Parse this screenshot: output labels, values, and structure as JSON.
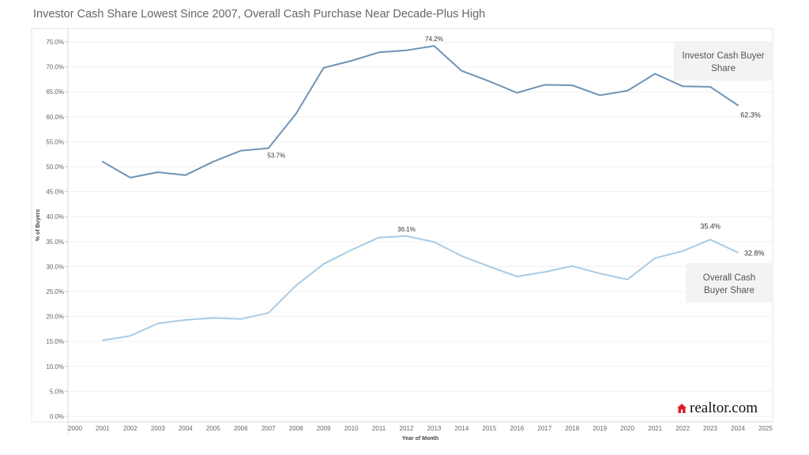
{
  "title": "Investor Cash Share Lowest Since 2007, Overall Cash Purchase Near Decade-Plus High",
  "brand": {
    "name": "realtor.com",
    "color": "#d92228"
  },
  "chart_data": {
    "type": "line",
    "title": "Investor Cash Share Lowest Since 2007, Overall Cash Purchase Near Decade-Plus High",
    "xlabel": "Year of Month",
    "ylabel": "% of Buyers",
    "xlim": [
      2000,
      2025
    ],
    "ylim": [
      0,
      75
    ],
    "x_ticks": [
      "2000",
      "2001",
      "2002",
      "2003",
      "2004",
      "2005",
      "2006",
      "2007",
      "2008",
      "2009",
      "2010",
      "2011",
      "2012",
      "2013",
      "2014",
      "2015",
      "2016",
      "2017",
      "2018",
      "2019",
      "2020",
      "2021",
      "2022",
      "2023",
      "2024",
      "2025"
    ],
    "y_ticks": [
      "0.0%",
      "5.0%",
      "10.0%",
      "15.0%",
      "20.0%",
      "25.0%",
      "30.0%",
      "35.0%",
      "40.0%",
      "45.0%",
      "50.0%",
      "55.0%",
      "60.0%",
      "65.0%",
      "70.0%",
      "75.0%"
    ],
    "grid": true,
    "x": [
      2001,
      2002,
      2003,
      2004,
      2005,
      2006,
      2007,
      2008,
      2009,
      2010,
      2011,
      2012,
      2013,
      2014,
      2015,
      2016,
      2017,
      2018,
      2019,
      2020,
      2021,
      2022,
      2023,
      2024
    ],
    "series": [
      {
        "name": "Investor Cash Buyer Share",
        "color": "#6f93b6",
        "values": [
          51.0,
          47.8,
          48.9,
          48.3,
          51.0,
          53.2,
          53.7,
          60.6,
          69.8,
          71.2,
          72.9,
          73.3,
          74.2,
          69.2,
          67.1,
          64.8,
          66.4,
          66.3,
          64.3,
          65.2,
          68.6,
          66.1,
          66.0,
          62.3
        ],
        "legend_label": "Investor Cash Buyer Share"
      },
      {
        "name": "Overall Cash Buyer Share",
        "color": "#a9cbe4",
        "values": [
          15.2,
          16.1,
          18.6,
          19.3,
          19.7,
          19.5,
          20.7,
          26.2,
          30.5,
          33.3,
          35.8,
          36.1,
          34.9,
          32.1,
          30.0,
          28.0,
          28.9,
          30.1,
          28.6,
          27.4,
          31.7,
          33.1,
          35.4,
          32.8
        ],
        "legend_label": "Overall Cash Buyer Share"
      }
    ],
    "annotations": [
      {
        "series": 0,
        "x": 2007,
        "text": "53.7%",
        "pos": "below"
      },
      {
        "series": 0,
        "x": 2013,
        "text": "74.2%",
        "pos": "above"
      },
      {
        "series": 0,
        "x": 2024,
        "text": "62.3%",
        "pos": "below-right"
      },
      {
        "series": 1,
        "x": 2012,
        "text": "36.1%",
        "pos": "above"
      },
      {
        "series": 1,
        "x": 2023,
        "text": "35.4%",
        "pos": "above"
      },
      {
        "series": 1,
        "x": 2024,
        "text": "32.8%",
        "pos": "right"
      }
    ]
  }
}
